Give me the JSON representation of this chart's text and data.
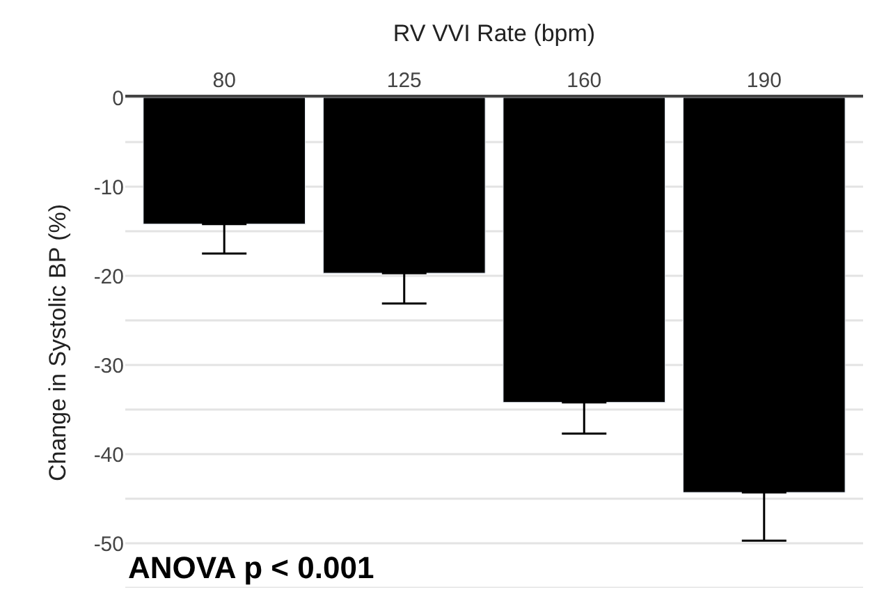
{
  "chart_data": {
    "type": "bar",
    "xlabel": "RV VVI Rate (bpm)",
    "ylabel": "Change in Systolic BP (%)",
    "categories": [
      "80",
      "125",
      "160",
      "190"
    ],
    "values": [
      -14.2,
      -19.7,
      -34.2,
      -44.3
    ],
    "errors": [
      [
        -17.5,
        -14.2
      ],
      [
        -23.1,
        -19.7
      ],
      [
        -37.7,
        -34.2
      ],
      [
        -49.7,
        -44.3
      ]
    ],
    "color": "#000000",
    "ylim": [
      -55,
      0
    ],
    "yticks": [
      0,
      {
        "value": -5,
        "label": null
      },
      -10,
      {
        "value": -15,
        "label": null
      },
      -20,
      {
        "value": -25,
        "label": null
      },
      -30,
      {
        "value": -35,
        "label": null
      },
      -40,
      {
        "value": -45,
        "label": null
      },
      -50,
      {
        "value": -55,
        "label": null
      }
    ],
    "grid": "y",
    "annotations": [
      "ANOVA p < 0.001"
    ]
  }
}
